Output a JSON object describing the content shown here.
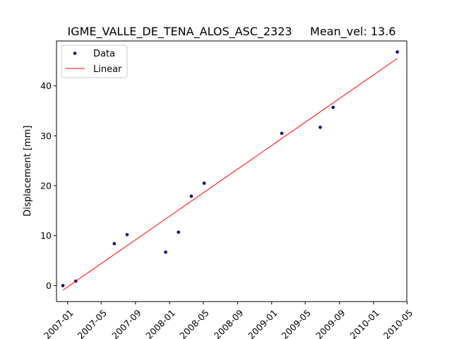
{
  "chart_data": {
    "type": "scatter",
    "title": "IGME_VALLE_DE_TENA_ALOS_ASC_2323     Mean_vel: 13.6",
    "xlabel": "",
    "ylabel": "Displacement [mm]",
    "xlim": [
      "2006-11-22",
      "2010-04-30"
    ],
    "ylim": [
      -3.2,
      49.0
    ],
    "x_ticks": [
      "2007-01",
      "2007-05",
      "2007-09",
      "2008-01",
      "2008-05",
      "2008-09",
      "2009-01",
      "2009-05",
      "2009-09",
      "2010-01",
      "2010-05"
    ],
    "y_ticks": [
      0,
      10,
      20,
      30,
      40
    ],
    "grid": false,
    "legend_position": "top-left",
    "series": [
      {
        "name": "Data",
        "kind": "points",
        "color": "#000080",
        "x": [
          "2006-12-15",
          "2007-01-30",
          "2007-06-17",
          "2007-08-02",
          "2007-12-18",
          "2008-02-02",
          "2008-03-19",
          "2008-05-04",
          "2009-02-06",
          "2009-06-24",
          "2009-08-09",
          "2010-03-27"
        ],
        "y": [
          0.0,
          0.9,
          8.4,
          10.2,
          6.7,
          10.7,
          17.9,
          20.5,
          30.5,
          31.7,
          35.7,
          46.8
        ]
      },
      {
        "name": "Linear",
        "kind": "line",
        "color": "#ff0000",
        "x": [
          "2006-12-15",
          "2010-03-27"
        ],
        "y": [
          -0.9,
          45.5
        ]
      }
    ]
  }
}
